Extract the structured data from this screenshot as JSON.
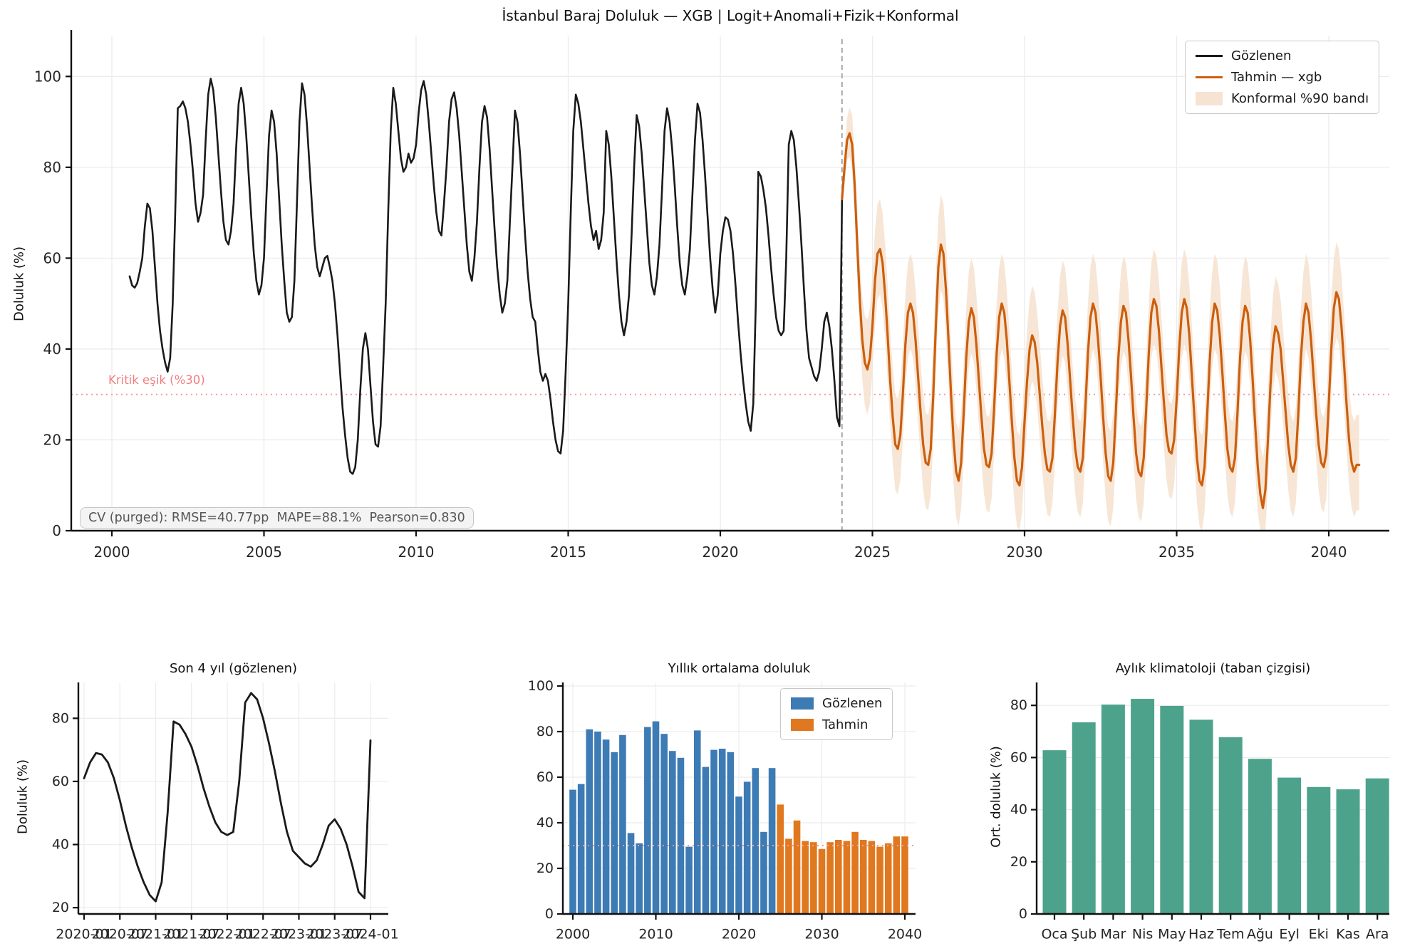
{
  "figure": {
    "bg_color": "#ffffff",
    "accent_observed": "#1a1a1a",
    "accent_forecast": "#cc5f0e",
    "accent_band": "#f6e3d2",
    "accent_obs_bar": "#3d7bb5",
    "accent_fc_bar": "#e0781f",
    "accent_clima_bar": "#4da28c",
    "accent_threshold": "#f49c9c",
    "accent_vline": "#9e9e9e"
  },
  "chart_data": [
    {
      "id": "main",
      "type": "line",
      "title": "İstanbul Baraj Doluluk — XGB | Logit+Anomali+Fizik+Konformal",
      "ylabel": "Doluluk (%)",
      "xticks": [
        2000,
        2005,
        2010,
        2015,
        2020,
        2025,
        2030,
        2035,
        2040
      ],
      "yticks": [
        0,
        20,
        40,
        60,
        80,
        100
      ],
      "xlim": [
        1998.67,
        2042.0
      ],
      "ylim": [
        0,
        109
      ],
      "grid": true,
      "legend_position": "upper right",
      "threshold": {
        "value": 30,
        "label": "Kritik eşik (%30)"
      },
      "forecast_start_x": 2024.0,
      "stats": "CV (purged): RMSE=40.77pp  MAPE=88.1%  Pearson=0.830",
      "legend": [
        {
          "label": "Gözlenen",
          "type": "line",
          "color": "#1a1a1a"
        },
        {
          "label": "Tahmin — xgb",
          "type": "line",
          "color": "#cc5f0e"
        },
        {
          "label": "Konformal %90 bandı",
          "type": "patch",
          "color": "#f6e3d2"
        }
      ],
      "series": [
        {
          "name": "Gözlenen",
          "color": "#1a1a1a",
          "start_year": 2000,
          "start_month": 8,
          "values": [
            56,
            54,
            53.5,
            54.5,
            57,
            60,
            67,
            72,
            71,
            66,
            58,
            50,
            44,
            40,
            37,
            35,
            38,
            50,
            70,
            93,
            93.5,
            94.5,
            93,
            90,
            85,
            79,
            72,
            68,
            70,
            74,
            86,
            96,
            99.5,
            97,
            91,
            83,
            75,
            68,
            64,
            63,
            66,
            72,
            84,
            94,
            97.5,
            94,
            87,
            78,
            69,
            61,
            55,
            52,
            54,
            60,
            74,
            87,
            92.5,
            90,
            83,
            73,
            63,
            55,
            48,
            46,
            47,
            55,
            72,
            90,
            98.5,
            96,
            89,
            80,
            71,
            63,
            58,
            56,
            58,
            60,
            60.5,
            58,
            55,
            50,
            43,
            35,
            27,
            21,
            16,
            13,
            12.5,
            14,
            20,
            31,
            40,
            43.5,
            40,
            32,
            24,
            19,
            18.5,
            23,
            36,
            50,
            70,
            88,
            97.5,
            94,
            88,
            82,
            79,
            80,
            83,
            81,
            82,
            85,
            92,
            97,
            99,
            96,
            90,
            83,
            76,
            70,
            66,
            65,
            72,
            80,
            90,
            95,
            96.5,
            93,
            87,
            79,
            71,
            63,
            57,
            55,
            60,
            68,
            80,
            90,
            93.5,
            91,
            84,
            75,
            66,
            58,
            52,
            48,
            50,
            55,
            68,
            80,
            92.5,
            90,
            83,
            74,
            65,
            57,
            51,
            47,
            46,
            40,
            35,
            33,
            34.5,
            33,
            29,
            24,
            20,
            17.5,
            17,
            22,
            35,
            50,
            70,
            88,
            96,
            94,
            90,
            84,
            78,
            72,
            67,
            64,
            66,
            62,
            64,
            70,
            88,
            85,
            78,
            69,
            60,
            52,
            46,
            43,
            46,
            52,
            65,
            80,
            91.5,
            89,
            83,
            75,
            67,
            59,
            54,
            52,
            56,
            63,
            75,
            88,
            93,
            90,
            84,
            76,
            67,
            59,
            54,
            52,
            56,
            62,
            74,
            86,
            94,
            92,
            86,
            78,
            69,
            60,
            53,
            48,
            52,
            61,
            66,
            69,
            68.5,
            66,
            61,
            54,
            46,
            39,
            33,
            28,
            24,
            22,
            28,
            50,
            79,
            78,
            75,
            71,
            65,
            58,
            52,
            47,
            44,
            43,
            44,
            60,
            85,
            88,
            86,
            80,
            72,
            63,
            53,
            44,
            38,
            36,
            34,
            33,
            35,
            40,
            46,
            48,
            45,
            40,
            33,
            25,
            23,
            73
          ]
        },
        {
          "name": "Tahmin — xgb",
          "color": "#cc5f0e",
          "start_year": 2024,
          "start_month": 1,
          "values": [
            73,
            80,
            86,
            87.5,
            85,
            76,
            63,
            51,
            42,
            37,
            35.5,
            38,
            45,
            55,
            61,
            62,
            59,
            52,
            43,
            33,
            25,
            19,
            18,
            21,
            30,
            41,
            48,
            50,
            48,
            42,
            34,
            26,
            19,
            15,
            14.5,
            18,
            30,
            45,
            58,
            63,
            61,
            53,
            42,
            30,
            20,
            13,
            11,
            15,
            26,
            38,
            46,
            49,
            47,
            41,
            33,
            25,
            18,
            14.5,
            14,
            17,
            27,
            39,
            47,
            50,
            48,
            42,
            33,
            24,
            16,
            11,
            10,
            14,
            24,
            33,
            40,
            43,
            41.5,
            37,
            30,
            23,
            17,
            13.5,
            13,
            16,
            26,
            37,
            45,
            48.5,
            47,
            41,
            33,
            25,
            18,
            14,
            13,
            16,
            27,
            39,
            47,
            50,
            48,
            42,
            34,
            25,
            17,
            12,
            11,
            15,
            26,
            38,
            46,
            49.5,
            48,
            42,
            34,
            25,
            17,
            13,
            12,
            16,
            27,
            39,
            48,
            51,
            49.5,
            44,
            36,
            28,
            21,
            17.5,
            17,
            20,
            29,
            40,
            48,
            51,
            49,
            43,
            34,
            25,
            16,
            11,
            10,
            14,
            25,
            37,
            46,
            50,
            48.5,
            43,
            35,
            26,
            18,
            14,
            13,
            16,
            26,
            38,
            46,
            49.5,
            48,
            42,
            33,
            23,
            14,
            8,
            5,
            9,
            20,
            32,
            41,
            45,
            43.5,
            40,
            33,
            26,
            19,
            14.5,
            13,
            16,
            26,
            38,
            46,
            50,
            48,
            42,
            34,
            26,
            19,
            15,
            14,
            17,
            28,
            40,
            49,
            52.5,
            51,
            45,
            37,
            28,
            20,
            15,
            13,
            14.5,
            14.5
          ]
        }
      ],
      "band": {
        "name": "Konformal %90 bandı",
        "upper_offset": 11,
        "lower_offset": 10,
        "color": "#f6e3d2"
      }
    },
    {
      "id": "son4",
      "type": "line",
      "title": "Son 4 yıl (gözlenen)",
      "ylabel": "Doluluk (%)",
      "line_color": "#1a1a1a",
      "yticks": [
        20,
        40,
        60,
        80
      ],
      "ylim": [
        18,
        92
      ],
      "xtick_labels": [
        "2020-01",
        "2020-07",
        "2021-01",
        "2021-07",
        "2022-01",
        "2022-07",
        "2023-01",
        "2023-07",
        "2024-01"
      ],
      "values": [
        61,
        66,
        69,
        68.5,
        66,
        61,
        54,
        46,
        39,
        33,
        28,
        24,
        22,
        28,
        50,
        79,
        78,
        75,
        71,
        65,
        58,
        52,
        47,
        44,
        43,
        44,
        60,
        85,
        88,
        86,
        80,
        72,
        63,
        53,
        44,
        38,
        36,
        34,
        33,
        35,
        40,
        46,
        48,
        45,
        40,
        33,
        25,
        23,
        73
      ]
    },
    {
      "id": "annual",
      "type": "bar",
      "title": "Yıllık ortalama doluluk",
      "yticks": [
        0,
        20,
        40,
        60,
        80,
        100
      ],
      "xticks": [
        2000,
        2010,
        2020,
        2030,
        2040
      ],
      "ylim": [
        0,
        100
      ],
      "threshold": 30,
      "series": [
        {
          "name": "Gözlenen",
          "color": "#3d7bb5",
          "start_year": 2000,
          "values": [
            54.5,
            57,
            81,
            80,
            76.5,
            71,
            78.5,
            35.5,
            31,
            82,
            84.5,
            79,
            71.5,
            68.5,
            29.5,
            80.5,
            64.5,
            72,
            72.5,
            71,
            51.5,
            58,
            64,
            36,
            64
          ]
        },
        {
          "name": "Tahmin",
          "color": "#e0781f",
          "start_year": 2025,
          "values": [
            48,
            33,
            41,
            32,
            31.5,
            28.5,
            31.5,
            32.5,
            32,
            36,
            32.5,
            32,
            29.5,
            31,
            34,
            34
          ]
        }
      ]
    },
    {
      "id": "clima",
      "type": "bar",
      "title": "Aylık klimatoloji (taban çizgisi)",
      "ylabel": "Ort. doluluk (%)",
      "bar_color": "#4da28c",
      "yticks": [
        0,
        20,
        40,
        60,
        80
      ],
      "ylim": [
        0,
        88
      ],
      "categories": [
        "Oca",
        "Şub",
        "Mar",
        "Nis",
        "May",
        "Haz",
        "Tem",
        "Ağu",
        "Eyl",
        "Eki",
        "Kas",
        "Ara"
      ],
      "values": [
        62.8,
        73.5,
        80.3,
        82.5,
        79.8,
        74.5,
        67.8,
        59.5,
        52.3,
        48.7,
        47.8,
        52
      ]
    }
  ]
}
